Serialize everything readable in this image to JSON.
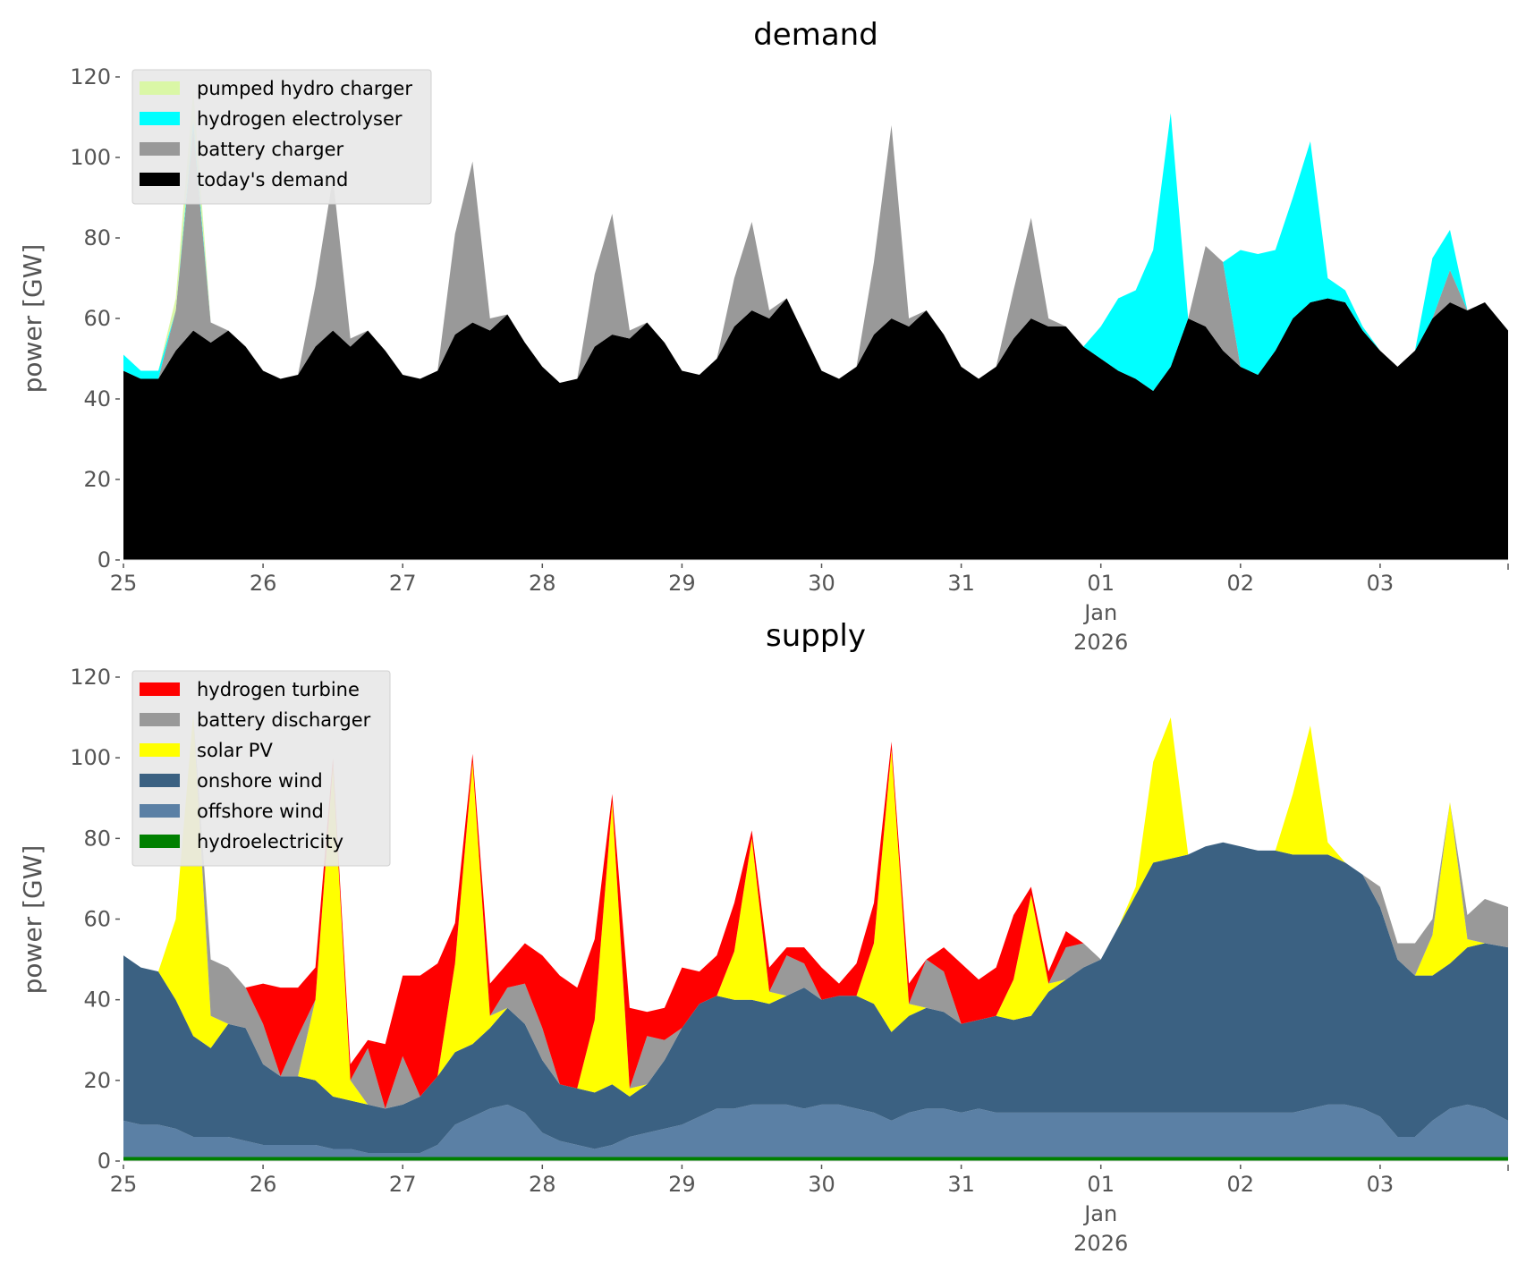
{
  "chart_data": [
    {
      "type": "area",
      "stacked": true,
      "title": "demand",
      "xlabel": "",
      "ylabel": "power [GW]",
      "ylim": [
        0,
        120
      ],
      "yticks": [
        0,
        20,
        40,
        60,
        80,
        100,
        120
      ],
      "x_start": "2025-12-25 00:00",
      "x_step_hours": 3,
      "x_range_hours": [
        0,
        238
      ],
      "xticks": [
        {
          "hour": 0,
          "label": "25"
        },
        {
          "hour": 24,
          "label": "26"
        },
        {
          "hour": 48,
          "label": "27"
        },
        {
          "hour": 72,
          "label": "28"
        },
        {
          "hour": 96,
          "label": "29"
        },
        {
          "hour": 120,
          "label": "30"
        },
        {
          "hour": 144,
          "label": "31"
        },
        {
          "hour": 168,
          "label": "01\nJan\n2026"
        },
        {
          "hour": 192,
          "label": "02"
        },
        {
          "hour": 216,
          "label": "03"
        }
      ],
      "grid": false,
      "legend_position": "top-left",
      "series": [
        {
          "name": "today's demand",
          "color": "#000000",
          "values": [
            47,
            45,
            45,
            52,
            57,
            54,
            57,
            53,
            47,
            45,
            46,
            53,
            57,
            53,
            57,
            52,
            46,
            45,
            47,
            56,
            59,
            57,
            61,
            54,
            48,
            44,
            45,
            53,
            56,
            55,
            59,
            54,
            47,
            46,
            50,
            58,
            62,
            60,
            65,
            56,
            47,
            45,
            48,
            56,
            60,
            58,
            62,
            56,
            48,
            45,
            48,
            55,
            60,
            58,
            58,
            53,
            50,
            47,
            45,
            42,
            48,
            60,
            58,
            52,
            48,
            46,
            52,
            60,
            64,
            65,
            64,
            57,
            52,
            48,
            52,
            60,
            64,
            62,
            64,
            57
          ]
        },
        {
          "name": "battery charger",
          "color": "#999999",
          "values": [
            0,
            0,
            0,
            10,
            50,
            5,
            0,
            0,
            0,
            0,
            0,
            15,
            38,
            2,
            0,
            0,
            0,
            0,
            0,
            25,
            40,
            3,
            0,
            0,
            0,
            0,
            0,
            18,
            30,
            2,
            0,
            0,
            0,
            0,
            0,
            12,
            22,
            2,
            0,
            0,
            0,
            0,
            0,
            18,
            48,
            2,
            0,
            0,
            0,
            0,
            0,
            12,
            25,
            2,
            0,
            0,
            0,
            0,
            0,
            0,
            0,
            0,
            20,
            22,
            0,
            0,
            0,
            0,
            0,
            0,
            0,
            0,
            0,
            0,
            0,
            0,
            8,
            0,
            0,
            0
          ]
        },
        {
          "name": "hydrogen electrolyser",
          "color": "#00FFFF",
          "values": [
            4,
            2,
            2,
            0,
            2,
            0,
            0,
            0,
            0,
            0,
            0,
            0,
            0,
            0,
            0,
            0,
            0,
            0,
            0,
            0,
            0,
            0,
            0,
            0,
            0,
            0,
            0,
            0,
            0,
            0,
            0,
            0,
            0,
            0,
            0,
            0,
            0,
            0,
            0,
            0,
            0,
            0,
            0,
            0,
            0,
            0,
            0,
            0,
            0,
            0,
            0,
            0,
            0,
            0,
            0,
            0,
            8,
            18,
            22,
            35,
            63,
            0,
            0,
            0,
            29,
            30,
            25,
            30,
            40,
            5,
            3,
            1,
            0,
            0,
            0,
            15,
            10,
            0,
            0,
            0
          ]
        },
        {
          "name": "pumped hydro charger",
          "color": "#DAF7A6",
          "values": [
            0,
            0,
            0,
            3,
            8,
            0,
            0,
            0,
            0,
            0,
            0,
            0,
            0,
            0,
            0,
            0,
            0,
            0,
            0,
            0,
            0,
            0,
            0,
            0,
            0,
            0,
            0,
            0,
            0,
            0,
            0,
            0,
            0,
            0,
            0,
            0,
            0,
            0,
            0,
            0,
            0,
            0,
            0,
            0,
            0,
            0,
            0,
            0,
            0,
            0,
            0,
            0,
            0,
            0,
            0,
            0,
            0,
            0,
            0,
            0,
            0,
            0,
            0,
            0,
            0,
            0,
            0,
            0,
            0,
            0,
            0,
            0,
            0,
            0,
            0,
            0,
            0,
            0,
            0,
            0
          ]
        }
      ]
    },
    {
      "type": "area",
      "stacked": true,
      "title": "supply",
      "xlabel": "",
      "ylabel": "power [GW]",
      "ylim": [
        0,
        120
      ],
      "yticks": [
        0,
        20,
        40,
        60,
        80,
        100,
        120
      ],
      "x_start": "2025-12-25 00:00",
      "x_step_hours": 3,
      "x_range_hours": [
        0,
        238
      ],
      "xticks": [
        {
          "hour": 0,
          "label": "25"
        },
        {
          "hour": 24,
          "label": "26"
        },
        {
          "hour": 48,
          "label": "27"
        },
        {
          "hour": 72,
          "label": "28"
        },
        {
          "hour": 96,
          "label": "29"
        },
        {
          "hour": 120,
          "label": "30"
        },
        {
          "hour": 144,
          "label": "31"
        },
        {
          "hour": 168,
          "label": "01\nJan\n2026"
        },
        {
          "hour": 192,
          "label": "02"
        },
        {
          "hour": 216,
          "label": "03"
        }
      ],
      "grid": false,
      "legend_position": "top-left",
      "series": [
        {
          "name": "hydroelectricity",
          "color": "#008000",
          "values": [
            1,
            1,
            1,
            1,
            1,
            1,
            1,
            1,
            1,
            1,
            1,
            1,
            1,
            1,
            1,
            1,
            1,
            1,
            1,
            1,
            1,
            1,
            1,
            1,
            1,
            1,
            1,
            1,
            1,
            1,
            1,
            1,
            1,
            1,
            1,
            1,
            1,
            1,
            1,
            1,
            1,
            1,
            1,
            1,
            1,
            1,
            1,
            1,
            1,
            1,
            1,
            1,
            1,
            1,
            1,
            1,
            1,
            1,
            1,
            1,
            1,
            1,
            1,
            1,
            1,
            1,
            1,
            1,
            1,
            1,
            1,
            1,
            1,
            1,
            1,
            1,
            1,
            1,
            1,
            1
          ]
        },
        {
          "name": "offshore wind",
          "color": "#5B80A5",
          "values": [
            9,
            8,
            8,
            7,
            5,
            5,
            5,
            4,
            3,
            3,
            3,
            3,
            2,
            2,
            1,
            1,
            1,
            1,
            3,
            8,
            10,
            12,
            13,
            11,
            6,
            4,
            3,
            2,
            3,
            5,
            6,
            7,
            8,
            10,
            12,
            12,
            13,
            13,
            13,
            12,
            13,
            13,
            12,
            11,
            9,
            11,
            12,
            12,
            11,
            12,
            11,
            11,
            11,
            11,
            11,
            11,
            11,
            11,
            11,
            11,
            11,
            11,
            11,
            11,
            11,
            11,
            11,
            11,
            12,
            13,
            13,
            12,
            10,
            5,
            5,
            9,
            12,
            13,
            12,
            9
          ]
        },
        {
          "name": "onshore wind",
          "color": "#3B6182",
          "values": [
            41,
            39,
            38,
            32,
            25,
            22,
            28,
            28,
            20,
            17,
            17,
            16,
            13,
            12,
            12,
            11,
            12,
            14,
            17,
            18,
            18,
            20,
            24,
            22,
            18,
            14,
            14,
            14,
            15,
            10,
            12,
            17,
            24,
            28,
            28,
            27,
            26,
            25,
            27,
            30,
            26,
            27,
            28,
            27,
            22,
            24,
            25,
            24,
            22,
            22,
            24,
            23,
            24,
            30,
            33,
            36,
            38,
            46,
            54,
            62,
            63,
            64,
            66,
            67,
            66,
            65,
            65,
            64,
            63,
            62,
            60,
            58,
            52,
            44,
            40,
            36,
            36,
            39,
            41,
            43
          ]
        },
        {
          "name": "solar PV",
          "color": "#FFFF00",
          "values": [
            0,
            0,
            0,
            20,
            80,
            8,
            0,
            0,
            0,
            0,
            0,
            20,
            82,
            5,
            0,
            0,
            0,
            0,
            0,
            22,
            70,
            3,
            0,
            0,
            0,
            0,
            0,
            18,
            70,
            2,
            0,
            0,
            0,
            0,
            0,
            12,
            40,
            3,
            0,
            0,
            0,
            0,
            0,
            15,
            70,
            3,
            0,
            0,
            0,
            0,
            0,
            10,
            30,
            2,
            0,
            0,
            0,
            0,
            2,
            25,
            35,
            0,
            0,
            0,
            0,
            0,
            0,
            15,
            32,
            3,
            0,
            0,
            0,
            0,
            0,
            10,
            40,
            2,
            0,
            0
          ]
        },
        {
          "name": "battery discharger",
          "color": "#999999",
          "values": [
            0,
            0,
            0,
            0,
            0,
            14,
            14,
            10,
            10,
            0,
            10,
            0,
            0,
            0,
            14,
            0,
            12,
            0,
            0,
            0,
            0,
            0,
            5,
            10,
            8,
            0,
            0,
            0,
            0,
            0,
            12,
            5,
            0,
            0,
            0,
            0,
            0,
            0,
            10,
            6,
            0,
            0,
            0,
            0,
            0,
            0,
            12,
            10,
            0,
            0,
            0,
            0,
            0,
            0,
            8,
            6,
            0,
            0,
            0,
            0,
            0,
            0,
            0,
            0,
            0,
            0,
            0,
            0,
            0,
            0,
            0,
            0,
            5,
            4,
            8,
            4,
            0,
            6,
            11,
            10
          ]
        },
        {
          "name": "hydrogen turbine",
          "color": "#FF0000",
          "values": [
            0,
            0,
            0,
            0,
            0,
            0,
            0,
            0,
            10,
            22,
            12,
            8,
            2,
            4,
            2,
            16,
            20,
            30,
            28,
            10,
            2,
            8,
            6,
            10,
            18,
            27,
            25,
            20,
            2,
            20,
            6,
            8,
            15,
            8,
            10,
            12,
            2,
            6,
            2,
            4,
            8,
            3,
            8,
            10,
            2,
            5,
            0,
            6,
            15,
            10,
            12,
            16,
            2,
            3,
            4,
            0,
            0,
            0,
            0,
            0,
            0,
            0,
            0,
            0,
            0,
            0,
            0,
            0,
            0,
            0,
            0,
            0,
            0,
            0,
            0,
            0,
            0,
            0,
            0,
            0
          ]
        }
      ]
    }
  ]
}
